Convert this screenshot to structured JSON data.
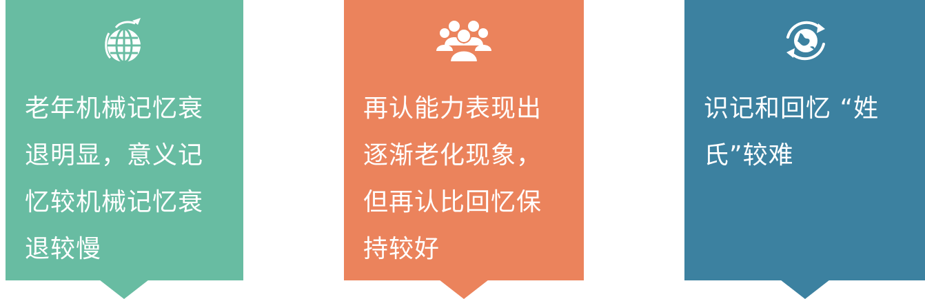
{
  "colors": {
    "card_1": "#68BCA2",
    "card_2": "#EB835C",
    "card_3": "#3C81A0"
  },
  "cards": [
    {
      "icon": "globe-plane-icon",
      "lines": [
        "老年机械记忆衰",
        "退明显，意义记",
        "忆较机械记忆衰",
        "退较慢"
      ]
    },
    {
      "icon": "crowd-icon",
      "lines": [
        "再认能力表现出",
        "逐渐老化现象，",
        "但再认比回忆保",
        "持较好"
      ]
    },
    {
      "icon": "rotating-globe-icon",
      "lines": [
        "识记和回忆 “姓",
        "氏”较难"
      ]
    }
  ]
}
